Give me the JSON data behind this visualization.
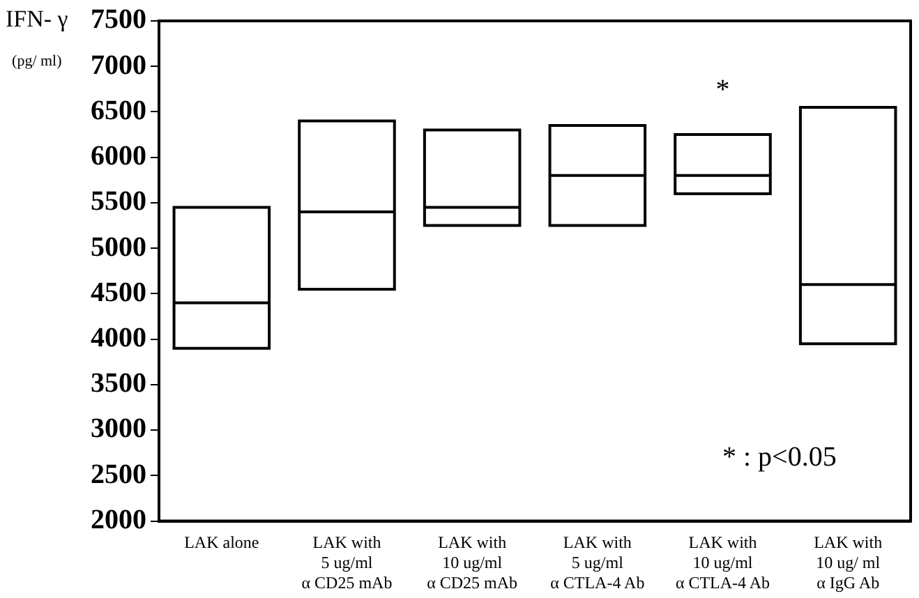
{
  "chart_data": {
    "type": "box",
    "ylabel": "IFN- γ\n(pg/ ml)",
    "categories": [
      "LAK alone",
      "LAK with\n5 ug/ml\nα CD25 mAb",
      "LAK with\n10 ug/ml\nα CD25 mAb",
      "LAK with\n5 ug/ml\nα CTLA-4 Ab",
      "LAK with\n10 ug/ml\nα CTLA-4 Ab",
      "LAK with\n10 ug/ ml\nα IgG Ab"
    ],
    "boxes": [
      {
        "low": 3900,
        "q1": 3900,
        "median": 4400,
        "q3": 5450,
        "high": 5450
      },
      {
        "low": 4550,
        "q1": 4550,
        "median": 5400,
        "q3": 6400,
        "high": 6400
      },
      {
        "low": 5250,
        "q1": 5250,
        "median": 5450,
        "q3": 6300,
        "high": 6300
      },
      {
        "low": 5250,
        "q1": 5250,
        "median": 5800,
        "q3": 6350,
        "high": 6350
      },
      {
        "low": 5600,
        "q1": 5600,
        "median": 5800,
        "q3": 6250,
        "high": 6250
      },
      {
        "low": 3950,
        "q1": 3950,
        "median": 4600,
        "q3": 6550,
        "high": 6550
      }
    ],
    "color": "#000000",
    "ylim": [
      2000,
      7500
    ],
    "yticks": [
      2000,
      2500,
      3000,
      3500,
      4000,
      4500,
      5000,
      5500,
      6000,
      6500,
      7000,
      7500
    ],
    "grid": false,
    "legend": false,
    "annotations": [
      "*",
      "* : p<0.05"
    ]
  }
}
